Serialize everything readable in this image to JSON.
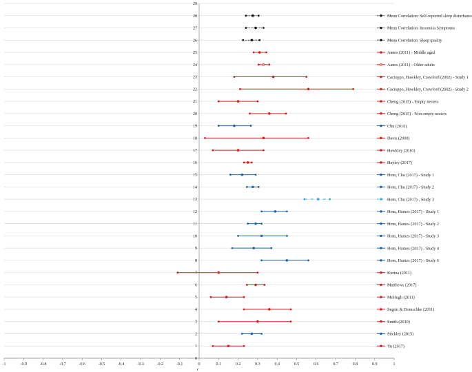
{
  "colors": {
    "red": "#d61f1f",
    "blue": "#1f63a8",
    "lightblue": "#31a8d8",
    "black": "#111111",
    "grid": "#dcdcdc",
    "axis": "#888888"
  },
  "chart_data": {
    "type": "forest",
    "title": "",
    "xlabel": "r",
    "ylabel": "",
    "xlim": [
      -1,
      1
    ],
    "ylim": [
      0,
      29
    ],
    "x_ticks": [
      -1,
      -0.9,
      -0.8,
      -0.7,
      -0.6,
      -0.5,
      -0.4,
      -0.3,
      -0.2,
      -0.1,
      0,
      0.1,
      0.2,
      0.3,
      0.4,
      0.5,
      0.6,
      0.7,
      0.8,
      0.9,
      1
    ],
    "y_ticks": [
      0,
      1,
      2,
      3,
      4,
      5,
      6,
      7,
      8,
      9,
      10,
      11,
      12,
      13,
      14,
      15,
      16,
      17,
      18,
      19,
      20,
      21,
      22,
      23,
      24,
      25,
      26,
      27,
      28,
      29
    ],
    "grid": true,
    "legend": "right",
    "series": [
      {
        "row": 28,
        "name": "Mean Correlation: Self-reported sleep disturbance",
        "lo": 0.24,
        "mid": 0.275,
        "hi": 0.305,
        "color": "black",
        "style": "dotted"
      },
      {
        "row": 27,
        "name": "Mean Correlation: Insomnia Symptoms",
        "lo": 0.24,
        "mid": 0.29,
        "hi": 0.33,
        "color": "black",
        "style": "dotted"
      },
      {
        "row": 26,
        "name": "Mean Correlation: Sleep quality",
        "lo": 0.225,
        "mid": 0.27,
        "hi": 0.31,
        "color": "black",
        "style": "dotted"
      },
      {
        "row": 25,
        "name": "Aanes (2011) - Middle aged",
        "lo": 0.28,
        "mid": 0.31,
        "hi": 0.345,
        "color": "red",
        "style": "solid"
      },
      {
        "row": 24,
        "name": "Aanes (2011) - Older adults",
        "lo": 0.305,
        "mid": 0.33,
        "hi": 0.36,
        "color": "red",
        "style": "solid",
        "open": true
      },
      {
        "row": 23,
        "name": "Cacioppo, Hawkley, Crawford (2002) - Study 1",
        "lo": 0.18,
        "mid": 0.38,
        "hi": 0.55,
        "color": "red",
        "style": "solid"
      },
      {
        "row": 22,
        "name": "Cacioppo, Hawkley, Crawford (2002) - Study 2",
        "lo": 0.21,
        "mid": 0.56,
        "hi": 0.79,
        "color": "red",
        "style": "solid"
      },
      {
        "row": 21,
        "name": "Cheng (2015) - Empty nesters",
        "lo": 0.1,
        "mid": 0.2,
        "hi": 0.3,
        "color": "red",
        "style": "solid"
      },
      {
        "row": 20,
        "name": "Cheng (2015) - Non-empty nesters",
        "lo": 0.26,
        "mid": 0.36,
        "hi": 0.445,
        "color": "red",
        "style": "solid"
      },
      {
        "row": 19,
        "name": "Chu (2016)",
        "lo": 0.1,
        "mid": 0.18,
        "hi": 0.265,
        "color": "blue",
        "style": "solid"
      },
      {
        "row": 18,
        "name": "Davis (2000)",
        "lo": 0.03,
        "mid": 0.33,
        "hi": 0.56,
        "color": "red",
        "style": "solid"
      },
      {
        "row": 17,
        "name": "Hawkley (2010)",
        "lo": 0.07,
        "mid": 0.2,
        "hi": 0.33,
        "color": "red",
        "style": "solid"
      },
      {
        "row": 16,
        "name": "Hayley (2017)",
        "lo": 0.23,
        "mid": 0.25,
        "hi": 0.27,
        "color": "red",
        "style": "solid"
      },
      {
        "row": 15,
        "name": "Hom, Chu (2017) - Study 1",
        "lo": 0.16,
        "mid": 0.22,
        "hi": 0.29,
        "color": "blue",
        "style": "solid"
      },
      {
        "row": 14,
        "name": "Hom, Chu (2017) - Study 2",
        "lo": 0.245,
        "mid": 0.275,
        "hi": 0.305,
        "color": "blue",
        "style": "solid"
      },
      {
        "row": 13,
        "name": "Hom, Chu (2017) - Study 3",
        "lo": 0.54,
        "mid": 0.61,
        "hi": 0.67,
        "color": "lightblue",
        "style": "dashed"
      },
      {
        "row": 12,
        "name": "Hom, Hames (2017) - Study 1",
        "lo": 0.32,
        "mid": 0.39,
        "hi": 0.45,
        "color": "blue",
        "style": "solid"
      },
      {
        "row": 11,
        "name": "Hom, Hames (2017) - Study 2",
        "lo": 0.25,
        "mid": 0.29,
        "hi": 0.32,
        "color": "blue",
        "style": "solid"
      },
      {
        "row": 10,
        "name": "Hom, Hames (2017) - Study 3",
        "lo": 0.2,
        "mid": 0.32,
        "hi": 0.45,
        "color": "blue",
        "style": "solid"
      },
      {
        "row": 9,
        "name": "Hom, Hames (2017) - Study 4",
        "lo": 0.17,
        "mid": 0.28,
        "hi": 0.37,
        "color": "blue",
        "style": "solid"
      },
      {
        "row": 8,
        "name": "Hom, Hames (2017) - Study 6",
        "lo": 0.32,
        "mid": 0.45,
        "hi": 0.56,
        "color": "blue",
        "style": "solid"
      },
      {
        "row": 7,
        "name": "Kurina (2011)",
        "lo": -0.11,
        "mid": 0.1,
        "hi": 0.3,
        "color": "red",
        "style": "solid"
      },
      {
        "row": 6,
        "name": "Matthews (2017)",
        "lo": 0.245,
        "mid": 0.29,
        "hi": 0.335,
        "color": "red",
        "style": "solid"
      },
      {
        "row": 5,
        "name": "McHugh (2011)",
        "lo": 0.06,
        "mid": 0.14,
        "hi": 0.23,
        "color": "red",
        "style": "solid"
      },
      {
        "row": 4,
        "name": "Segrin & Domschke (2011)",
        "lo": 0.23,
        "mid": 0.36,
        "hi": 0.47,
        "color": "red",
        "style": "solid"
      },
      {
        "row": 3,
        "name": "Smith (2010)",
        "lo": 0.1,
        "mid": 0.3,
        "hi": 0.47,
        "color": "red",
        "style": "solid"
      },
      {
        "row": 2,
        "name": "Stickley (2015)",
        "lo": 0.22,
        "mid": 0.27,
        "hi": 0.32,
        "color": "blue",
        "style": "solid"
      },
      {
        "row": 1,
        "name": "Yu (2017)",
        "lo": 0.07,
        "mid": 0.15,
        "hi": 0.23,
        "color": "red",
        "style": "solid"
      }
    ]
  }
}
